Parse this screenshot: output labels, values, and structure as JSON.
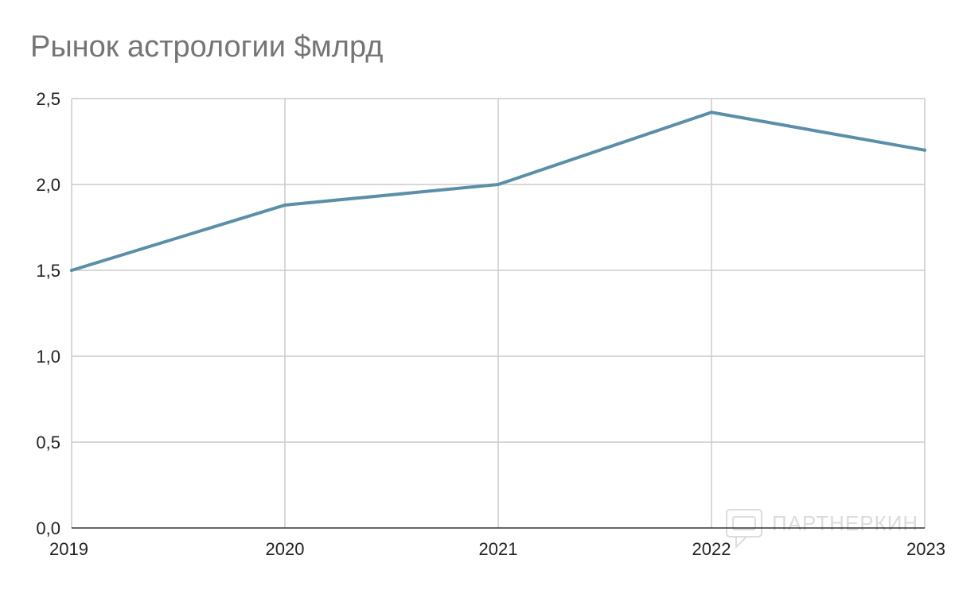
{
  "chart_data": {
    "type": "line",
    "title": "Рынок астрологии $млрд",
    "xlabel": "",
    "ylabel": "",
    "categories": [
      "2019",
      "2020",
      "2021",
      "2022",
      "2023"
    ],
    "y_tick_labels": [
      "0,0",
      "0,5",
      "1,0",
      "1,5",
      "2,0",
      "2,5"
    ],
    "y_ticks": [
      0,
      0.5,
      1.0,
      1.5,
      2.0,
      2.5
    ],
    "ylim": [
      0,
      2.5
    ],
    "grid": true,
    "series": [
      {
        "values": [
          1.5,
          1.88,
          2.0,
          2.42,
          2.2
        ],
        "color": "#5b8fa8"
      }
    ]
  },
  "watermark": {
    "text": "ПАРТНЕРКИН",
    "icon": "chat-bubble-icon"
  }
}
